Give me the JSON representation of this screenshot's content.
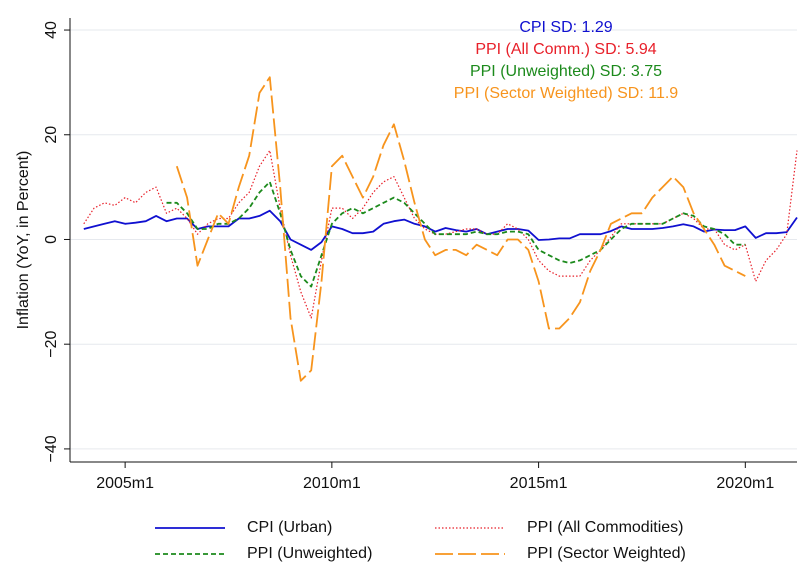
{
  "chart_data": {
    "type": "line",
    "y_label": "Inflation (YoY, in Percent)",
    "x": [
      "2004m1",
      "2004m4",
      "2004m7",
      "2004m10",
      "2005m1",
      "2005m4",
      "2005m7",
      "2005m10",
      "2006m1",
      "2006m4",
      "2006m7",
      "2006m10",
      "2007m1",
      "2007m4",
      "2007m7",
      "2007m10",
      "2008m1",
      "2008m4",
      "2008m7",
      "2008m10",
      "2009m1",
      "2009m4",
      "2009m7",
      "2009m10",
      "2010m1",
      "2010m4",
      "2010m7",
      "2010m10",
      "2011m1",
      "2011m4",
      "2011m7",
      "2011m10",
      "2012m1",
      "2012m4",
      "2012m7",
      "2012m10",
      "2013m1",
      "2013m4",
      "2013m7",
      "2013m10",
      "2014m1",
      "2014m4",
      "2014m7",
      "2014m10",
      "2015m1",
      "2015m4",
      "2015m7",
      "2015m10",
      "2016m1",
      "2016m4",
      "2016m7",
      "2016m10",
      "2017m1",
      "2017m4",
      "2017m7",
      "2017m10",
      "2018m1",
      "2018m4",
      "2018m7",
      "2018m10",
      "2019m1",
      "2019m4",
      "2019m7",
      "2019m10",
      "2020m1",
      "2020m4",
      "2020m7",
      "2020m10",
      "2021m1",
      "2021m4"
    ],
    "series": [
      {
        "name": "CPI (Urban)",
        "color": "#1010d0",
        "dash": "solid",
        "values": [
          2,
          2.5,
          3,
          3.5,
          3,
          3.2,
          3.5,
          4.5,
          3.5,
          4,
          4,
          2,
          2.5,
          2.5,
          2.5,
          4,
          4,
          4.5,
          5.5,
          3.5,
          0,
          -1,
          -2,
          -0.5,
          2.5,
          2,
          1.2,
          1.2,
          1.5,
          3,
          3.5,
          3.8,
          3,
          2.5,
          1.5,
          2.2,
          1.8,
          1.5,
          2,
          1,
          1.5,
          2,
          2,
          1.7,
          -0.1,
          0,
          0.2,
          0.2,
          1,
          1,
          1,
          1.6,
          2.5,
          2,
          2,
          2,
          2.2,
          2.5,
          2.9,
          2.5,
          1.5,
          1.9,
          1.8,
          1.8,
          2.5,
          0.3,
          1.2,
          1.2,
          1.4,
          4.2
        ]
      },
      {
        "name": "PPI (All Commodities)",
        "color": "#e8202a",
        "dash": "dot",
        "values": [
          3,
          6,
          7,
          6.5,
          8,
          7,
          9,
          10,
          5,
          6,
          4,
          1,
          3,
          4,
          4,
          7,
          9,
          14,
          17,
          6,
          -3,
          -10,
          -15,
          -4,
          6,
          6,
          4,
          6,
          9,
          11,
          12,
          8,
          4,
          2,
          1,
          1,
          1.5,
          2,
          2,
          1,
          1,
          3,
          2,
          0,
          -4,
          -6,
          -7,
          -7,
          -7,
          -4,
          -2,
          0.5,
          3,
          3,
          3,
          3,
          3,
          4,
          5,
          4,
          2,
          2,
          -1,
          -2,
          -1,
          -8,
          -4,
          -2,
          1,
          17
        ]
      },
      {
        "name": "PPI (Unweighted)",
        "color": "#1c8a1c",
        "dash": "dash",
        "values": [
          null,
          null,
          null,
          null,
          null,
          null,
          null,
          null,
          7,
          7,
          5,
          2,
          2,
          3,
          3,
          4,
          6,
          9,
          11,
          5,
          -2,
          -7,
          -9,
          -3,
          3,
          5,
          6,
          5,
          6,
          7,
          8,
          7,
          5,
          3,
          1,
          1,
          1,
          1,
          1.5,
          1,
          1,
          1.5,
          1.5,
          1,
          -2,
          -3,
          -4,
          -4.5,
          -4,
          -3,
          -2,
          0,
          2,
          3,
          3,
          3,
          3,
          4,
          5,
          4.5,
          2.5,
          2,
          1,
          -1,
          -1,
          null,
          null,
          null,
          null,
          null
        ]
      },
      {
        "name": "PPI (Sector Weighted)",
        "color": "#f7941d",
        "dash": "longdash",
        "values": [
          null,
          null,
          null,
          null,
          null,
          null,
          null,
          null,
          null,
          14,
          8,
          -5,
          0,
          5,
          3,
          10,
          16,
          28,
          31,
          10,
          -15,
          -27,
          -25,
          -8,
          14,
          16,
          12,
          8,
          12,
          18,
          22,
          15,
          7,
          0,
          -3,
          -2,
          -2,
          -3,
          -1,
          -2,
          -3,
          0,
          0,
          -2,
          -8,
          -17,
          -17,
          -15,
          -12,
          -6,
          -2,
          3,
          4,
          5,
          5,
          8,
          10,
          12,
          10,
          5,
          2,
          -1,
          -5,
          -6,
          -7,
          null,
          null,
          null,
          null,
          null
        ]
      }
    ],
    "annotations": [
      {
        "text": "CPI SD: 1.29",
        "color": "#1010d0"
      },
      {
        "text": "PPI (All Comm.) SD: 5.94",
        "color": "#e8202a"
      },
      {
        "text": "PPI (Unweighted) SD: 3.75",
        "color": "#1c8a1c"
      },
      {
        "text": "PPI (Sector Weighted) SD: 11.9",
        "color": "#f7941d"
      }
    ],
    "xlim": [
      "2003m9",
      "2021m4"
    ],
    "xticks": [
      "2005m1",
      "2010m1",
      "2015m1",
      "2020m1"
    ],
    "ylim": [
      -42.5,
      42.3
    ],
    "yticks": [
      {
        "value": -40,
        "label": "−40"
      },
      {
        "value": -20,
        "label": "−20"
      },
      0,
      20,
      40
    ],
    "grid": true,
    "legend": "bottom"
  }
}
